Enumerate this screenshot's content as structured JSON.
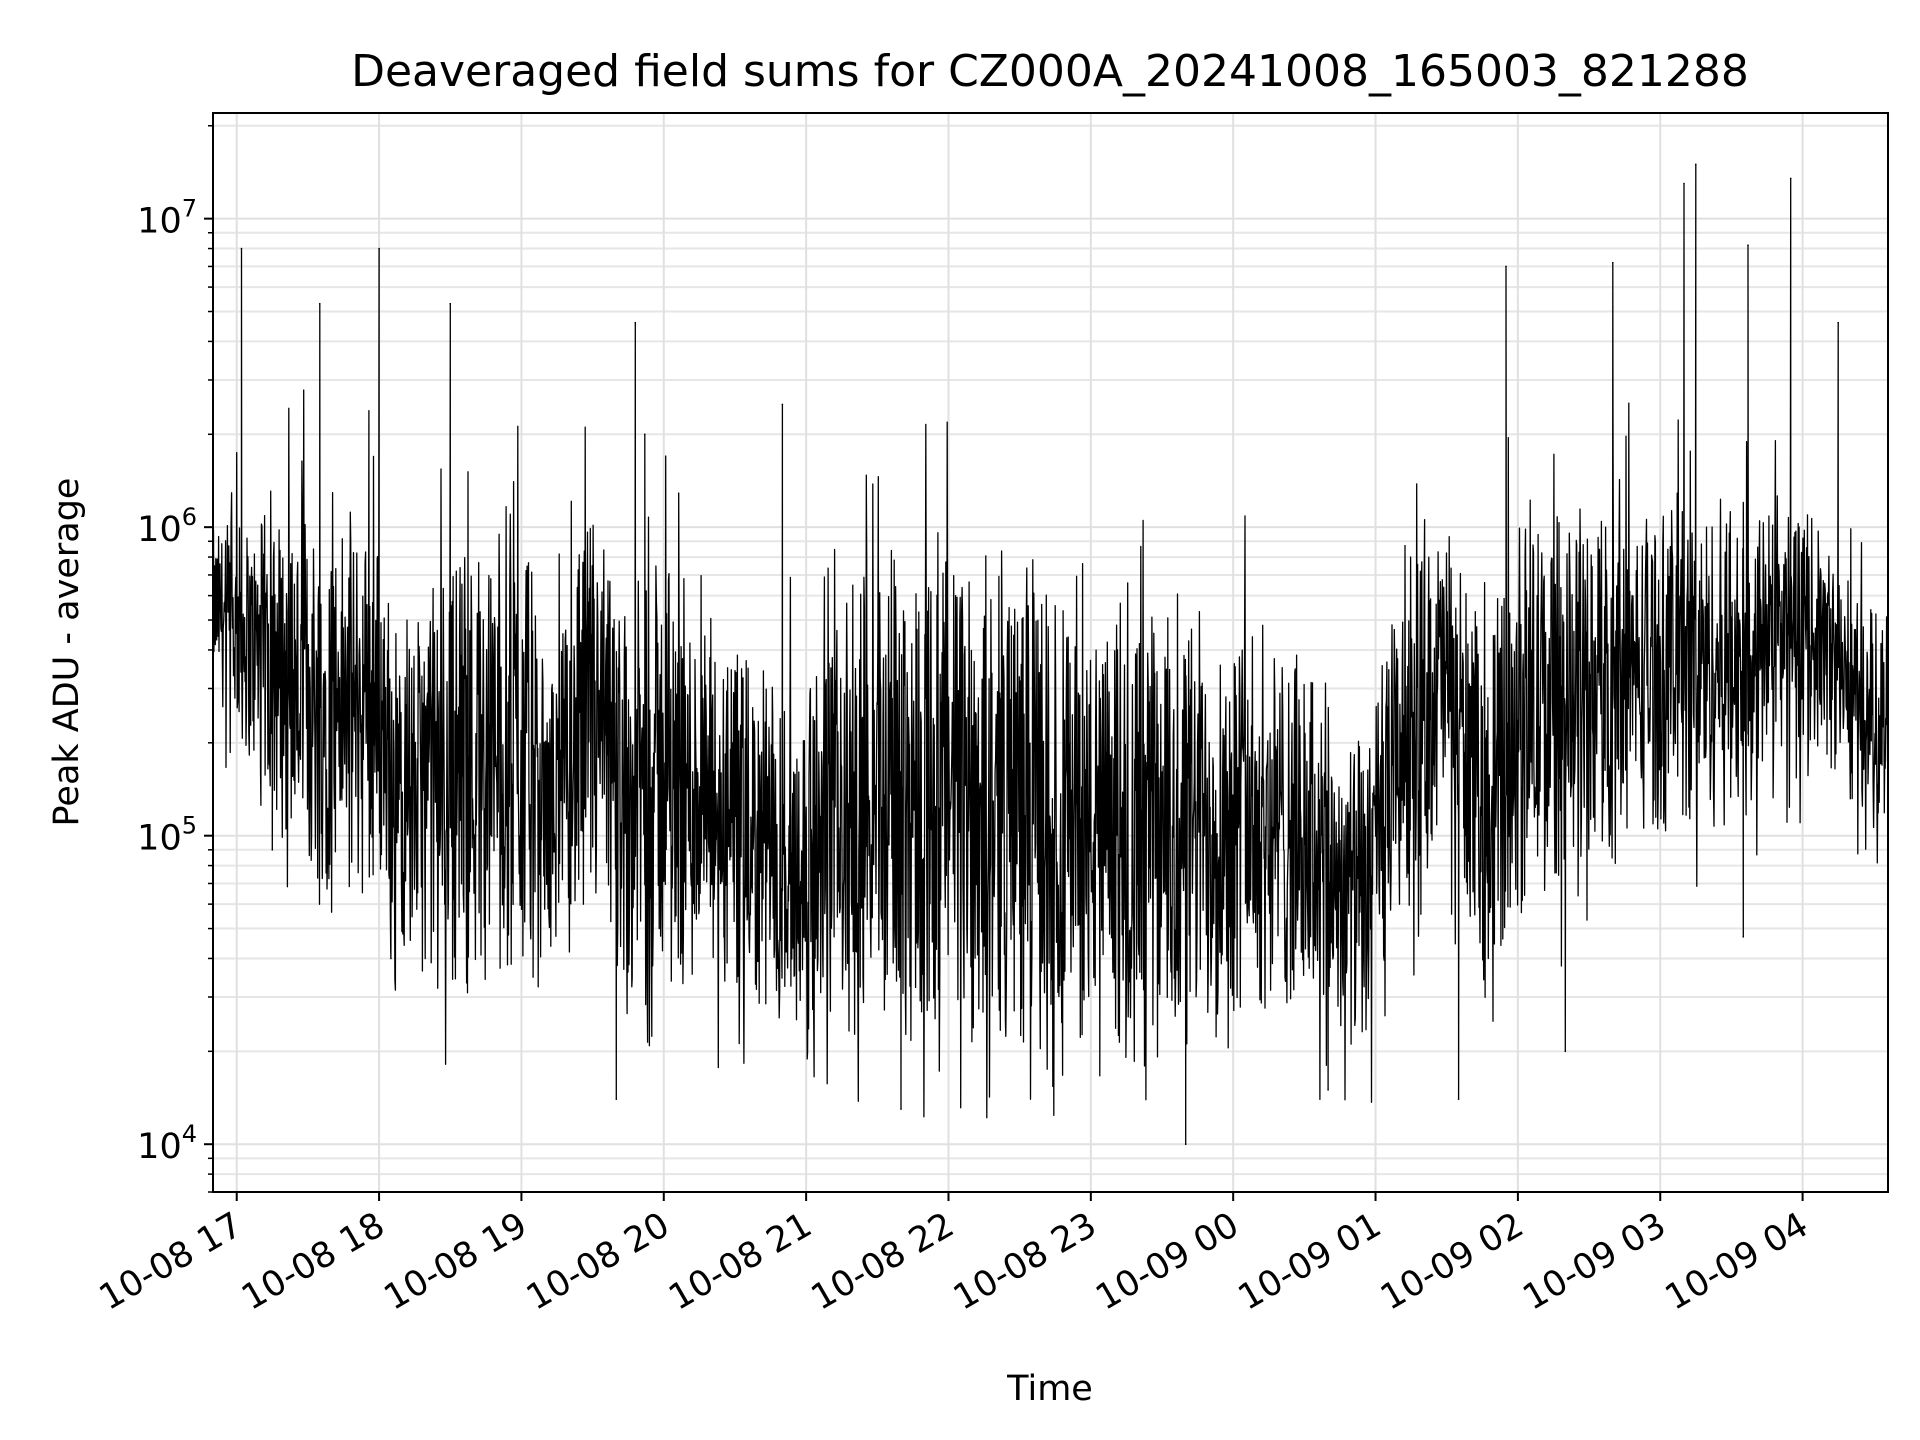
{
  "chart_data": {
    "type": "line",
    "title": "Deaveraged field sums for CZ000A_20241008_165003_821288",
    "xlabel": "Time",
    "ylabel": "Peak ADU - average",
    "yscale": "log",
    "grid": true,
    "legend": "none",
    "xlim": [
      "2024-10-08 16:50",
      "2024-10-09 04:36"
    ],
    "ylim": [
      7000,
      22000000
    ],
    "x_ticks": [
      "10-08 17",
      "10-08 18",
      "10-08 19",
      "10-08 20",
      "10-08 21",
      "10-08 22",
      "10-08 23",
      "10-09 00",
      "10-09 01",
      "10-09 02",
      "10-09 03",
      "10-09 04"
    ],
    "y_ticks": [
      {
        "base": "10",
        "exp": "4",
        "value": 10000
      },
      {
        "base": "10",
        "exp": "5",
        "value": 100000
      },
      {
        "base": "10",
        "exp": "6",
        "value": 1000000
      },
      {
        "base": "10",
        "exp": "7",
        "value": 10000000
      }
    ],
    "series_color": "#000000",
    "envelope": [
      {
        "t": "2024-10-08 16:50",
        "lo": 300000,
        "hi": 1000000
      },
      {
        "t": "2024-10-08 17:30",
        "lo": 60000,
        "hi": 1300000
      },
      {
        "t": "2024-10-08 18:00",
        "lo": 60000,
        "hi": 1100000
      },
      {
        "t": "2024-10-08 18:10",
        "lo": 40000,
        "hi": 400000
      },
      {
        "t": "2024-10-08 18:30",
        "lo": 30000,
        "hi": 1000000
      },
      {
        "t": "2024-10-08 19:00",
        "lo": 30000,
        "hi": 1300000
      },
      {
        "t": "2024-10-08 19:10",
        "lo": 40000,
        "hi": 300000
      },
      {
        "t": "2024-10-08 19:30",
        "lo": 40000,
        "hi": 1300000
      },
      {
        "t": "2024-10-08 19:45",
        "lo": 30000,
        "hi": 600000
      },
      {
        "t": "2024-10-08 20:00",
        "lo": 30000,
        "hi": 900000
      },
      {
        "t": "2024-10-08 20:30",
        "lo": 25000,
        "hi": 400000
      },
      {
        "t": "2024-10-08 21:00",
        "lo": 22000,
        "hi": 300000
      },
      {
        "t": "2024-10-08 21:30",
        "lo": 20000,
        "hi": 1000000
      },
      {
        "t": "2024-10-08 22:00",
        "lo": 20000,
        "hi": 1000000
      },
      {
        "t": "2024-10-08 22:30",
        "lo": 20000,
        "hi": 900000
      },
      {
        "t": "2024-10-08 23:00",
        "lo": 20000,
        "hi": 500000
      },
      {
        "t": "2024-10-08 23:30",
        "lo": 15000,
        "hi": 600000
      },
      {
        "t": "2024-10-09 00:00",
        "lo": 25000,
        "hi": 600000
      },
      {
        "t": "2024-10-09 00:30",
        "lo": 25000,
        "hi": 400000
      },
      {
        "t": "2024-10-09 00:55",
        "lo": 18000,
        "hi": 200000
      },
      {
        "t": "2024-10-09 01:15",
        "lo": 60000,
        "hi": 1100000
      },
      {
        "t": "2024-10-09 01:30",
        "lo": 100000,
        "hi": 1100000
      },
      {
        "t": "2024-10-09 01:45",
        "lo": 30000,
        "hi": 500000
      },
      {
        "t": "2024-10-09 02:00",
        "lo": 50000,
        "hi": 1100000
      },
      {
        "t": "2024-10-09 02:30",
        "lo": 80000,
        "hi": 1200000
      },
      {
        "t": "2024-10-09 03:00",
        "lo": 100000,
        "hi": 1300000
      },
      {
        "t": "2024-10-09 03:30",
        "lo": 100000,
        "hi": 1300000
      },
      {
        "t": "2024-10-09 04:00",
        "lo": 200000,
        "hi": 1200000
      },
      {
        "t": "2024-10-09 04:30",
        "lo": 100000,
        "hi": 600000
      }
    ],
    "spikes": [
      {
        "t": "2024-10-08 17:02",
        "value": 8000000
      },
      {
        "t": "2024-10-08 17:35",
        "value": 5300000
      },
      {
        "t": "2024-10-08 18:00",
        "value": 8000000
      },
      {
        "t": "2024-10-08 18:30",
        "value": 5300000
      },
      {
        "t": "2024-10-08 19:48",
        "value": 4600000
      },
      {
        "t": "2024-10-08 19:52",
        "value": 2000000
      },
      {
        "t": "2024-10-08 20:50",
        "value": 2500000
      },
      {
        "t": "2024-10-09 01:55",
        "value": 7000000
      },
      {
        "t": "2024-10-09 02:40",
        "value": 7200000
      },
      {
        "t": "2024-10-09 03:10",
        "value": 13000000
      },
      {
        "t": "2024-10-09 03:15",
        "value": 15000000
      },
      {
        "t": "2024-10-09 03:37",
        "value": 8200000
      },
      {
        "t": "2024-10-09 03:55",
        "value": 13500000
      },
      {
        "t": "2024-10-09 04:15",
        "value": 4600000
      }
    ],
    "dips": [
      {
        "t": "2024-10-08 17:15",
        "value": 90000
      },
      {
        "t": "2024-10-08 18:05",
        "value": 40000
      },
      {
        "t": "2024-10-08 19:40",
        "value": 14000
      },
      {
        "t": "2024-10-08 21:40",
        "value": 13000
      },
      {
        "t": "2024-10-08 23:40",
        "value": 10000
      },
      {
        "t": "2024-10-09 00:40",
        "value": 15000
      },
      {
        "t": "2024-10-09 01:35",
        "value": 14000
      },
      {
        "t": "2024-10-09 02:20",
        "value": 20000
      },
      {
        "t": "2024-10-09 03:35",
        "value": 47000
      }
    ]
  }
}
